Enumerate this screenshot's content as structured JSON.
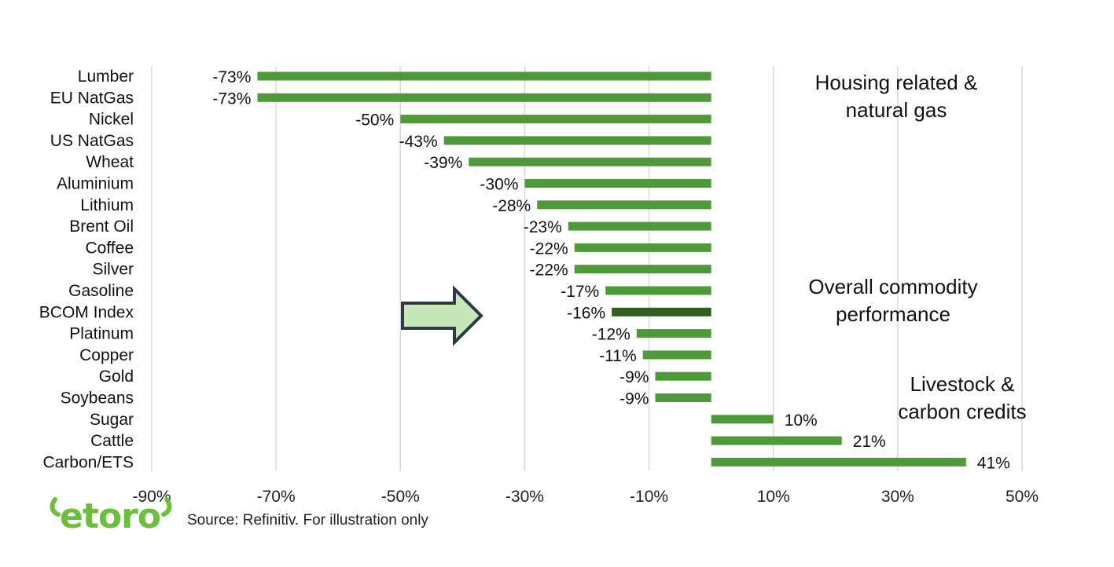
{
  "chart_data": {
    "type": "bar",
    "orientation": "horizontal",
    "categories": [
      "Lumber",
      "EU NatGas",
      "Nickel",
      "US NatGas",
      "Wheat",
      "Aluminium",
      "Lithium",
      "Brent Oil",
      "Coffee",
      "Silver",
      "Gasoline",
      "BCOM Index",
      "Platinum",
      "Copper",
      "Gold",
      "Soybeans",
      "Sugar",
      "Cattle",
      "Carbon/ETS"
    ],
    "values": [
      -73,
      -73,
      -50,
      -43,
      -39,
      -30,
      -28,
      -23,
      -22,
      -22,
      -17,
      -16,
      -12,
      -11,
      -9,
      -9,
      10,
      21,
      41
    ],
    "data_labels": [
      "-73%",
      "-73%",
      "-50%",
      "-43%",
      "-39%",
      "-30%",
      "-28%",
      "-23%",
      "-22%",
      "-22%",
      "-17%",
      "-16%",
      "-12%",
      "-11%",
      "-9%",
      "-9%",
      "10%",
      "21%",
      "41%"
    ],
    "highlight_category": "BCOM Index",
    "xlim": [
      -90,
      50
    ],
    "x_ticks": [
      -90,
      -70,
      -50,
      -30,
      -10,
      10,
      30,
      50
    ],
    "x_tick_labels": [
      "-90%",
      "-70%",
      "-50%",
      "-30%",
      "-10%",
      "10%",
      "30%",
      "50%"
    ],
    "grid": true,
    "title": "",
    "xlabel": "",
    "ylabel": "",
    "annotations": [
      {
        "lines": [
          "Housing related &",
          "natural gas"
        ]
      },
      {
        "lines": [
          "Overall commodity",
          "performance"
        ]
      },
      {
        "lines": [
          "Livestock &",
          "carbon credits"
        ]
      }
    ],
    "colors": {
      "bar": "#4e9a3a",
      "highlight": "#2e5e22",
      "grid": "#d9d9d9",
      "arrow_fill": "#c6e8b8",
      "arrow_stroke": "#2f3a45"
    }
  },
  "footer": {
    "source": "Source: Refinitiv. For illustration only"
  },
  "brand": {
    "logo_text": "etoro",
    "logo_color": "#6cbf3c",
    "logo_icon": "etoro-logo"
  }
}
